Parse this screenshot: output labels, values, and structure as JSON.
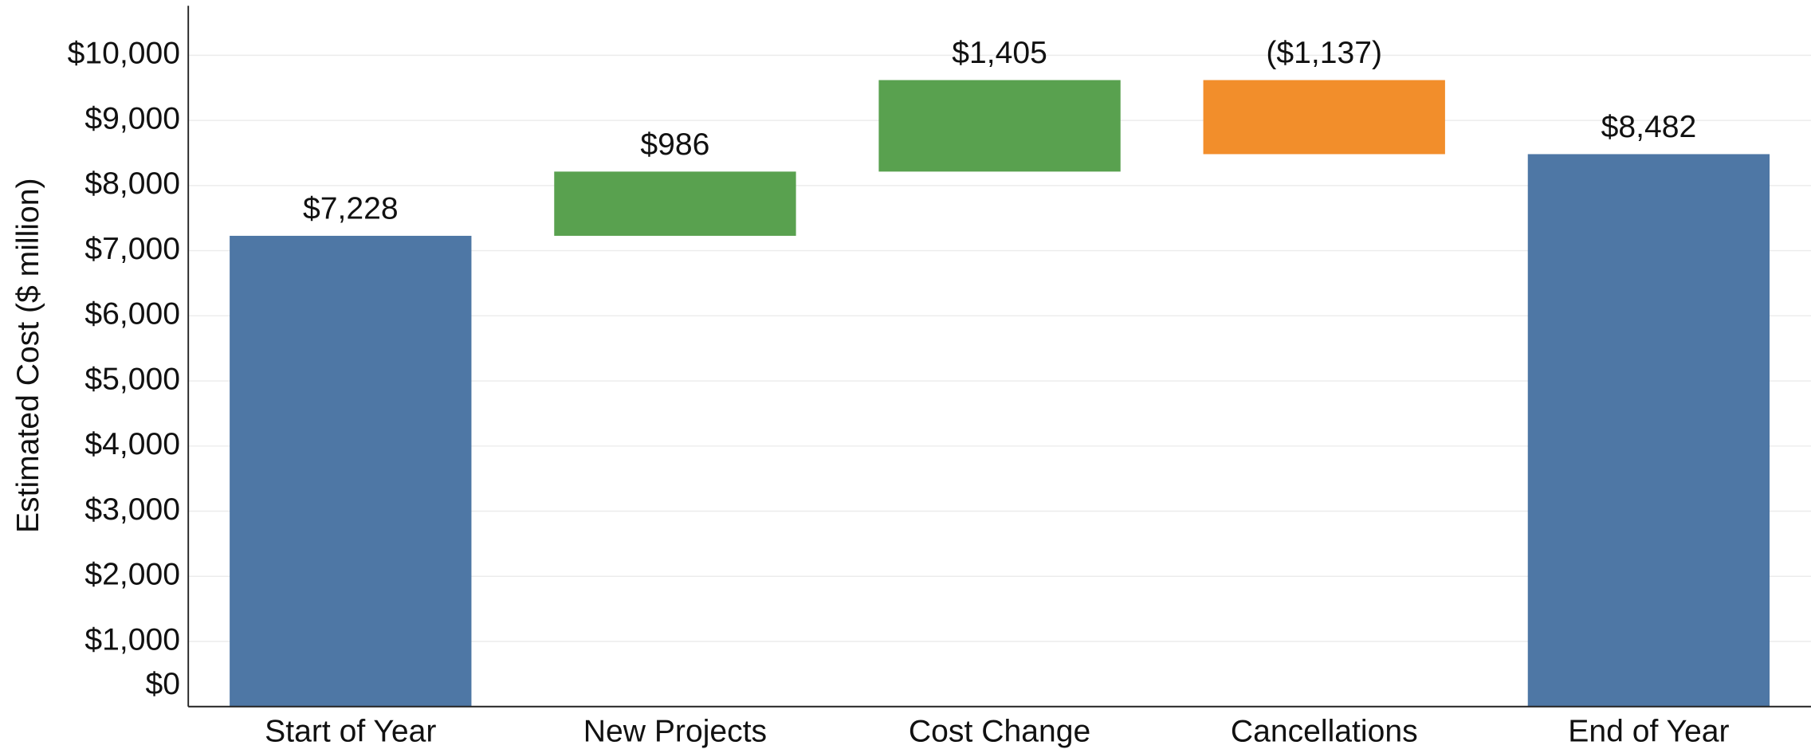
{
  "chart_data": {
    "type": "waterfall",
    "y_label": "Estimated Cost ($ million)",
    "categories": [
      "Start of Year",
      "New Projects",
      "Cost Change",
      "Cancellations",
      "End of Year"
    ],
    "values": [
      7228,
      986,
      1405,
      -1137,
      8482
    ],
    "value_labels": [
      "$7,228",
      "$986",
      "$1,405",
      "($1,137)",
      "$8,482"
    ],
    "is_total": [
      true,
      false,
      false,
      false,
      true
    ],
    "colors": {
      "total": "#4e77a5",
      "increase": "#59a14f",
      "decrease": "#f28e2b"
    },
    "ylim": [
      0,
      10760
    ],
    "yticks": [
      {
        "value": 0,
        "label": "$0"
      },
      {
        "value": 1000,
        "label": "$1,000"
      },
      {
        "value": 2000,
        "label": "$2,000"
      },
      {
        "value": 3000,
        "label": "$3,000"
      },
      {
        "value": 4000,
        "label": "$4,000"
      },
      {
        "value": 5000,
        "label": "$5,000"
      },
      {
        "value": 6000,
        "label": "$6,000"
      },
      {
        "value": 7000,
        "label": "$7,000"
      },
      {
        "value": 8000,
        "label": "$8,000"
      },
      {
        "value": 9000,
        "label": "$9,000"
      },
      {
        "value": 10000,
        "label": "$10,000"
      }
    ],
    "grid": true
  }
}
